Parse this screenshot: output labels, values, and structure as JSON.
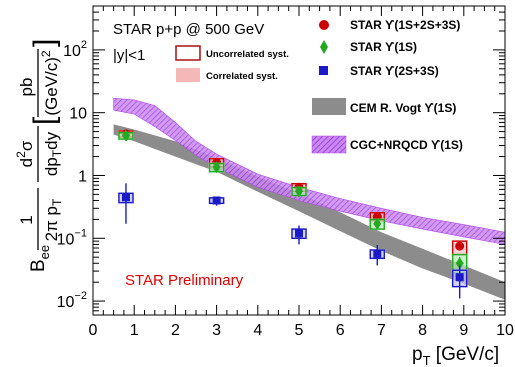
{
  "chart_data": {
    "type": "scatter",
    "xlabel": "p_T [GeV/c]",
    "ylabel": "B_ee (1/2πp_T) d²σ/dp_T dy  [pb/(GeV/c)²]",
    "xlim": [
      0,
      10
    ],
    "ylim": [
      0.006,
      500
    ],
    "log_y": true,
    "grid": false,
    "legend_position": "top-right",
    "x_ticks": [
      "0",
      "1",
      "2",
      "3",
      "4",
      "5",
      "6",
      "7",
      "8",
      "9",
      "10"
    ],
    "y_ticks": [
      {
        "value": 0.01,
        "base": "10",
        "exp": "−2"
      },
      {
        "value": 0.1,
        "base": "10",
        "exp": "−1"
      },
      {
        "value": 1,
        "base": "1",
        "exp": ""
      },
      {
        "value": 10,
        "base": "10",
        "exp": ""
      },
      {
        "value": 100,
        "base": "10",
        "exp": "2"
      }
    ],
    "annotations": {
      "collision": "STAR p+p @ 500 GeV",
      "rapidity": "|y|<1",
      "preliminary": "STAR Preliminary"
    },
    "systematics_legend": {
      "uncorrelated": "Uncorrelated syst.",
      "correlated": "Correlated syst."
    },
    "series": [
      {
        "name": "STAR ϒ(1S+2S+3S)",
        "color": "#cc0000",
        "marker": "circle",
        "x": [
          0.8,
          3.0,
          5.0,
          6.9,
          8.9
        ],
        "y": [
          4.6,
          1.6,
          0.65,
          0.22,
          0.075
        ],
        "err_low": [
          4.2,
          1.45,
          0.6,
          0.2,
          0.065
        ],
        "err_high": [
          5.0,
          1.75,
          0.7,
          0.24,
          0.085
        ],
        "syst_low": [
          4.1,
          1.38,
          0.56,
          0.19,
          0.055
        ],
        "syst_high": [
          5.1,
          1.85,
          0.74,
          0.255,
          0.09
        ]
      },
      {
        "name": "STAR ϒ(1S)",
        "color": "#22aa22",
        "marker": "diamond",
        "x": [
          0.8,
          3.0,
          5.0,
          6.9,
          8.9
        ],
        "y": [
          4.3,
          1.35,
          0.56,
          0.17,
          0.04
        ],
        "err_low": [
          3.9,
          1.2,
          0.5,
          0.15,
          0.03
        ],
        "err_high": [
          4.7,
          1.5,
          0.62,
          0.19,
          0.05
        ],
        "syst_low": [
          3.8,
          1.15,
          0.48,
          0.14,
          0.028
        ],
        "syst_high": [
          4.8,
          1.55,
          0.64,
          0.2,
          0.055
        ]
      },
      {
        "name": "STAR ϒ(2S+3S)",
        "color": "#1a1ac8",
        "marker": "square",
        "x": [
          0.8,
          3.0,
          5.0,
          6.9,
          8.9
        ],
        "y": [
          0.45,
          0.4,
          0.12,
          0.057,
          0.024
        ],
        "err_low": [
          0.17,
          0.33,
          0.08,
          0.037,
          0.011
        ],
        "err_high": [
          0.75,
          0.46,
          0.16,
          0.078,
          0.037
        ],
        "syst_low": [
          0.37,
          0.36,
          0.1,
          0.048,
          0.017
        ],
        "syst_high": [
          0.52,
          0.44,
          0.14,
          0.065,
          0.031
        ]
      }
    ],
    "bands": [
      {
        "name": "CEM R. Vogt ϒ(1S)",
        "color": "#8c8c8c",
        "x": [
          0.5,
          1,
          2,
          3,
          4,
          5,
          6,
          7,
          8,
          9,
          10
        ],
        "low": [
          4.5,
          3.5,
          2.0,
          1.15,
          0.55,
          0.27,
          0.13,
          0.063,
          0.033,
          0.019,
          0.0105
        ],
        "high": [
          6.5,
          5.4,
          3.5,
          1.9,
          0.95,
          0.52,
          0.26,
          0.125,
          0.068,
          0.037,
          0.02
        ]
      },
      {
        "name": "CGC+NRQCD ϒ(1S)",
        "color": "#b04ae8",
        "x": [
          0.5,
          1,
          1.5,
          2,
          2.5,
          3,
          4,
          5,
          6,
          7,
          8,
          9,
          10
        ],
        "low": [
          11,
          9.5,
          6.0,
          3.6,
          2.1,
          1.35,
          0.65,
          0.4,
          0.27,
          0.19,
          0.14,
          0.105,
          0.08
        ],
        "high": [
          17,
          16,
          13,
          7.0,
          3.5,
          2.2,
          1.05,
          0.65,
          0.43,
          0.3,
          0.215,
          0.165,
          0.125
        ]
      }
    ]
  }
}
